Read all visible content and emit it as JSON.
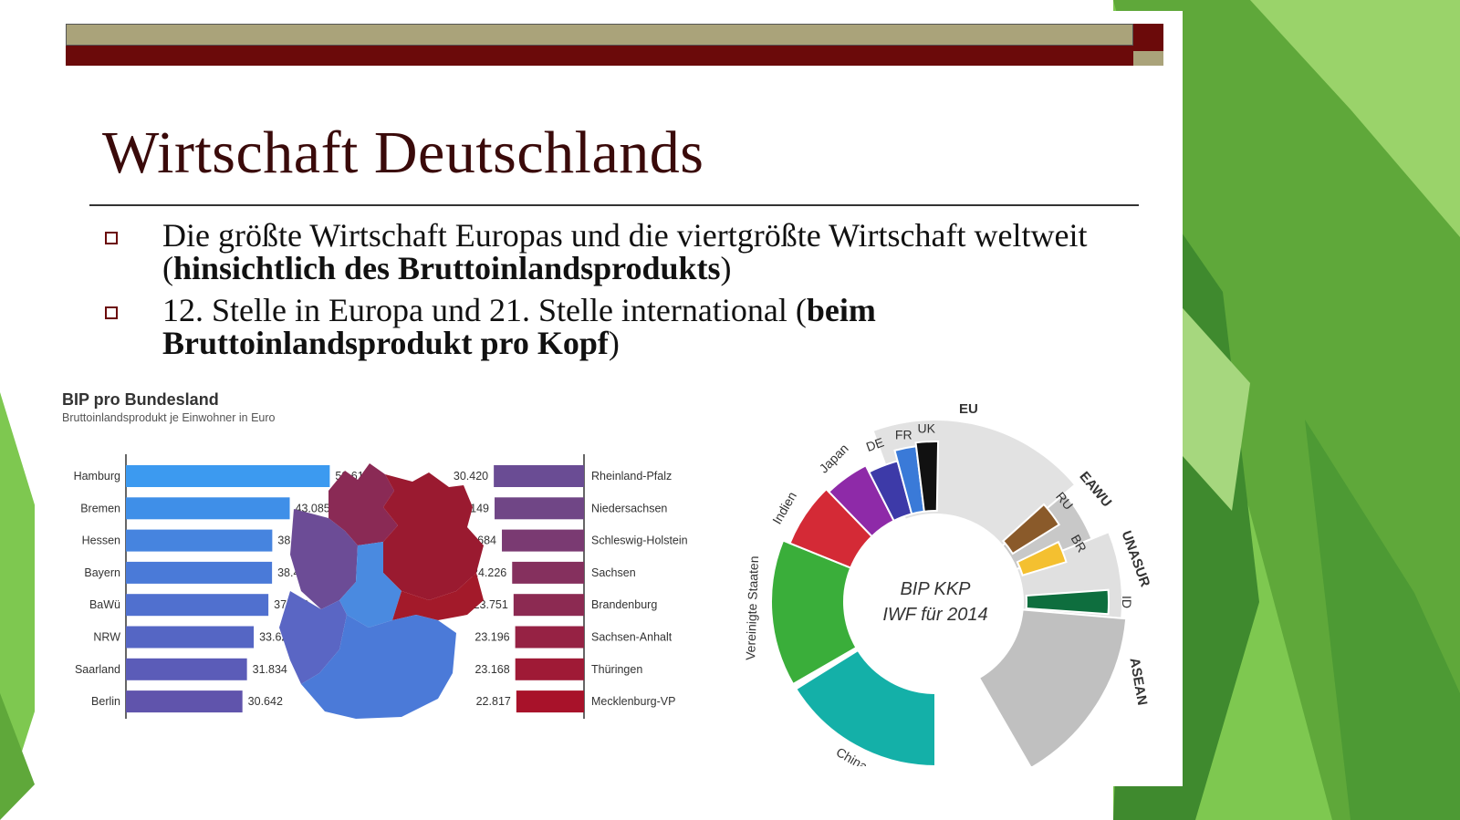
{
  "slide": {
    "title": "Wirtschaft Deutschlands",
    "bullets": [
      {
        "plain": "Die größte Wirtschaft Europas und die viertgrößte Wirtschaft weltweit (",
        "bold": "hinsichtlich des Bruttoinlandsprodukts",
        "tail": ")"
      },
      {
        "plain": "12. Stelle in Europa und 21. Stelle international (",
        "bold": "beim Bruttoinlandsprodukt pro Kopf",
        "tail": ")"
      }
    ]
  },
  "colors": {
    "bar_olive": "#aaa37a",
    "bar_maroon": "#6b0a0a",
    "title": "#3a0a0a",
    "background_green": "#5fa83a"
  },
  "chart_data": [
    {
      "type": "bar",
      "title": "BIP pro Bundesland",
      "subtitle": "Bruttoinlandsprodukt je Einwohner in Euro",
      "orientation": "horizontal",
      "left_group": {
        "categories": [
          "Hamburg",
          "Bremen",
          "Hessen",
          "Bayern",
          "BaWü",
          "NRW",
          "Saarland",
          "Berlin"
        ],
        "values": [
          53611,
          43085,
          38490,
          38429,
          37472,
          33621,
          31834,
          30642
        ],
        "labels": [
          "53.611",
          "43.085",
          "38.490",
          "38.429",
          "37.472",
          "33.621",
          "31.834",
          "30.642"
        ],
        "colors": [
          "#3c9af0",
          "#3f8fe8",
          "#4684df",
          "#4a7ad8",
          "#5070cf",
          "#5566c4",
          "#5b5cb8",
          "#6054ac"
        ]
      },
      "right_group": {
        "categories": [
          "Rheinland-Pfalz",
          "Niedersachsen",
          "Schleswig-Holstein",
          "Sachsen",
          "Brandenburg",
          "Sachsen-Anhalt",
          "Thüringen",
          "Mecklenburg-VP"
        ],
        "values": [
          30420,
          30149,
          27684,
          24226,
          23751,
          23196,
          23168,
          22817
        ],
        "labels": [
          "30.420",
          "30.149",
          "27.684",
          "24.226",
          "23.751",
          "23.196",
          "23.168",
          "22.817"
        ],
        "colors": [
          "#6a4c94",
          "#704686",
          "#7a3a72",
          "#85305e",
          "#8c2a52",
          "#962244",
          "#9f1a36",
          "#a8122a"
        ]
      },
      "xlim": [
        0,
        60000
      ]
    },
    {
      "type": "pie",
      "variant": "polar-area (donut)",
      "center_label": [
        "BIP KKP",
        "IWF für 2014"
      ],
      "segments": [
        {
          "label": "Vereinigte Staaten",
          "color": "#3aae3a"
        },
        {
          "label": "Indien",
          "color": "#d42a36"
        },
        {
          "label": "Japan",
          "color": "#8e2aa8"
        },
        {
          "label": "DE",
          "color": "#3d3aa8"
        },
        {
          "label": "FR",
          "color": "#3a7ad8"
        },
        {
          "label": "UK",
          "color": "#111111"
        },
        {
          "label": "RU",
          "color": "#8a5a2a"
        },
        {
          "label": "BR",
          "color": "#f4c030"
        },
        {
          "label": "ID",
          "color": "#0e6e3e"
        },
        {
          "label": "China",
          "color": "#14b0a8"
        }
      ],
      "groups": [
        {
          "label": "EU",
          "color": "#e2e2e2"
        },
        {
          "label": "EAWU",
          "color": "#c8c8c8"
        },
        {
          "label": "UNASUR",
          "color": "#e0e0e0"
        },
        {
          "label": "ASEAN",
          "color": "#c0c0c0"
        }
      ]
    }
  ]
}
